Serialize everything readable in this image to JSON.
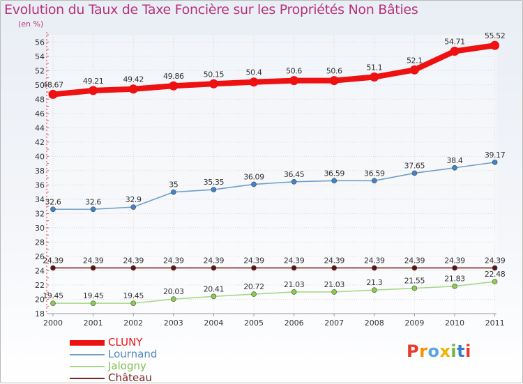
{
  "header": {
    "title": "Evolution du Taux de Taxe Foncière sur les Propriétés Non Bâties",
    "unit": "(en %)"
  },
  "logo": {
    "letters": [
      "P",
      "r",
      "o",
      "x",
      "i",
      "t",
      "i"
    ],
    "colors": [
      "#e8392b",
      "#f39200",
      "#5aa6dc",
      "#f0b400",
      "#6fb43f",
      "#3a7fc4",
      "#e8392b"
    ]
  },
  "chart_data": {
    "type": "line",
    "title": "Evolution du Taux de Taxe Foncière sur les Propriétés Non Bâties",
    "ylabel": "(en %)",
    "xlabel": "",
    "ylim": [
      18,
      57
    ],
    "y_ticks": [
      18,
      20,
      22,
      24,
      26,
      28,
      30,
      32,
      34,
      36,
      38,
      40,
      42,
      44,
      46,
      48,
      50,
      52,
      54,
      56
    ],
    "grid": true,
    "legend_position": "bottom-left",
    "categories": [
      "2000",
      "2001",
      "2002",
      "2003",
      "2004",
      "2005",
      "2006",
      "2007",
      "2008",
      "2009",
      "2010",
      "2011"
    ],
    "series": [
      {
        "name": "CLUNY",
        "color": "#ee1111",
        "marker": "#ee1111",
        "values": [
          48.67,
          49.21,
          49.42,
          49.86,
          50.15,
          50.4,
          50.6,
          50.6,
          51.1,
          52.1,
          54.71,
          55.52
        ],
        "labels": [
          "48.67",
          "49.21",
          "49.42",
          "49.86",
          "50.15",
          "50.4",
          "50.6",
          "50.6",
          "51.1",
          "52.1",
          "54.71",
          "55.52"
        ]
      },
      {
        "name": "Lournand",
        "color": "#6f9ec9",
        "marker": "#3f85c7",
        "values": [
          32.6,
          32.6,
          32.9,
          35,
          35.35,
          36.09,
          36.45,
          36.59,
          36.59,
          37.65,
          38.4,
          39.17
        ],
        "labels": [
          "32.6",
          "32.6",
          "32.9",
          "35",
          "35.35",
          "36.09",
          "36.45",
          "36.59",
          "36.59",
          "37.65",
          "38.4",
          "39.17"
        ]
      },
      {
        "name": "Jalogny",
        "color": "#a8d888",
        "marker": "#8ccb4f",
        "values": [
          19.45,
          19.45,
          19.45,
          20.03,
          20.41,
          20.72,
          21.03,
          21.03,
          21.3,
          21.55,
          21.83,
          22.48
        ],
        "labels": [
          "19.45",
          "19.45",
          "19.45",
          "20.03",
          "20.41",
          "20.72",
          "21.03",
          "21.03",
          "21.3",
          "21.55",
          "21.83",
          "22.48"
        ]
      },
      {
        "name": "Château",
        "color": "#7a2424",
        "marker": "#5c1414",
        "values": [
          24.39,
          24.39,
          24.39,
          24.39,
          24.39,
          24.39,
          24.39,
          24.39,
          24.39,
          24.39,
          24.39,
          24.39
        ],
        "labels": [
          "24.39",
          "24.39",
          "24.39",
          "24.39",
          "24.39",
          "24.39",
          "24.39",
          "24.39",
          "24.39",
          "24.39",
          "24.39",
          "24.39"
        ]
      }
    ]
  }
}
